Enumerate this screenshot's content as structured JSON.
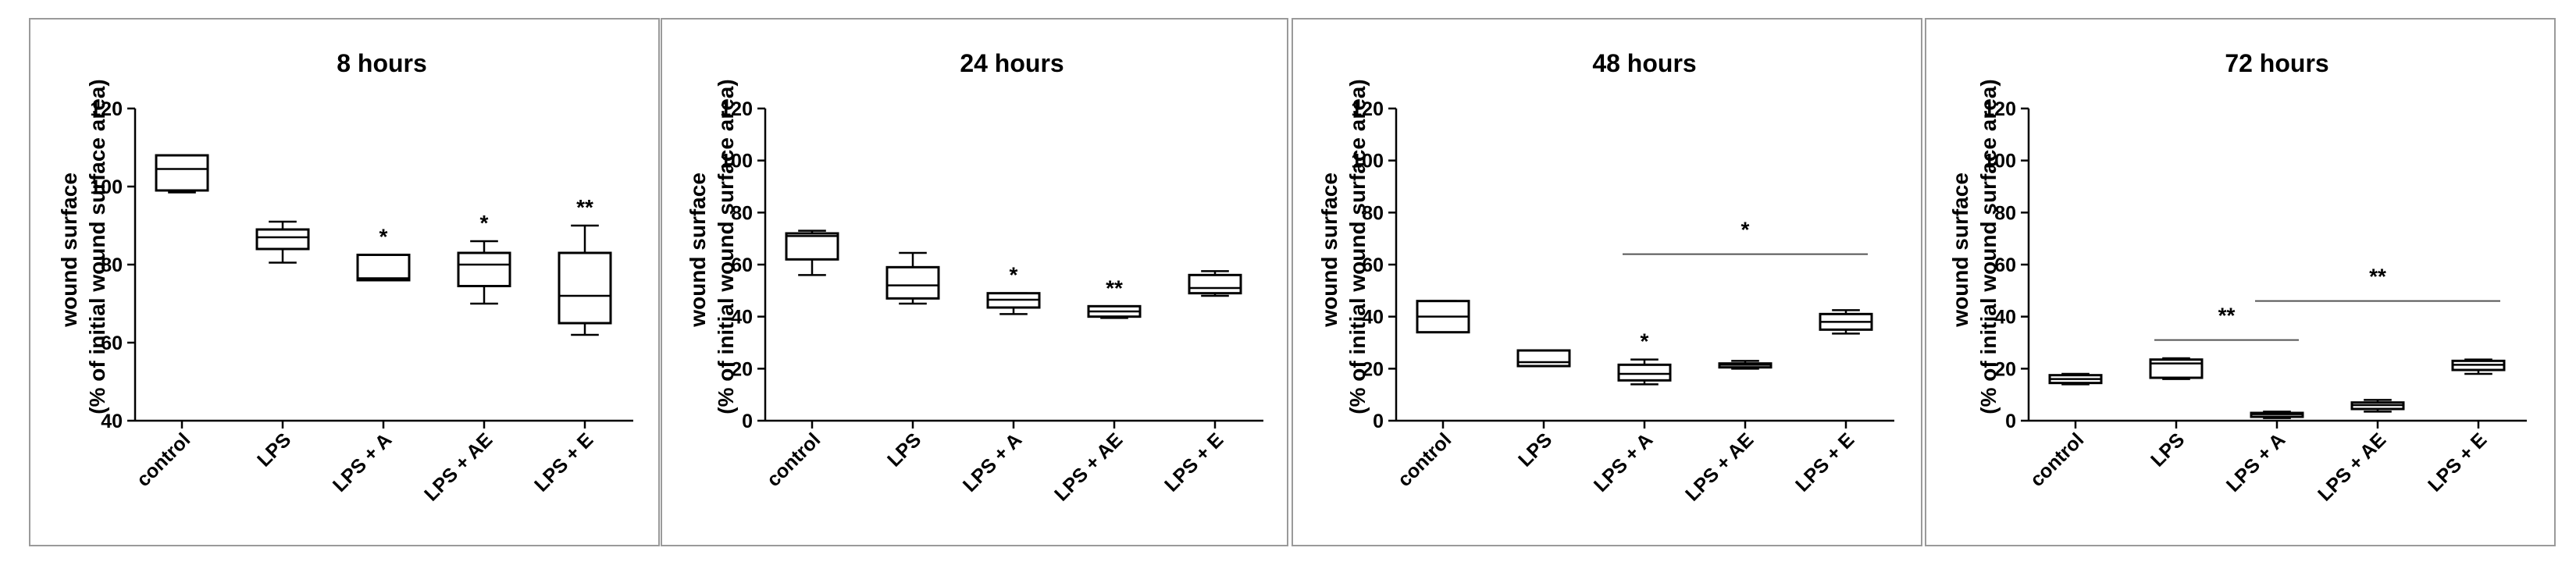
{
  "panels": [
    {
      "title": "8 hours",
      "ylabel_line1": "wound surface",
      "ylabel_line2": "(% of initial wound surface area)",
      "chart_data": {
        "type": "boxplot",
        "title": "8 hours",
        "ylabel": "wound surface (% of initial wound surface area)",
        "ylim": [
          40,
          120
        ],
        "yticks": [
          40,
          60,
          80,
          100,
          120
        ],
        "categories": [
          "control",
          "LPS",
          "LPS + A",
          "LPS + AE",
          "LPS + E"
        ],
        "boxes": [
          {
            "min": 98.5,
            "q1": 99,
            "median": 104.5,
            "q3": 108,
            "max": 108
          },
          {
            "min": 80.5,
            "q1": 84,
            "median": 87,
            "q3": 89,
            "max": 91
          },
          {
            "min": 76,
            "q1": 76,
            "median": 76.5,
            "q3": 82.5,
            "max": 82.5
          },
          {
            "min": 70,
            "q1": 74.5,
            "median": 80,
            "q3": 83,
            "max": 86
          },
          {
            "min": 62,
            "q1": 65,
            "median": 72,
            "q3": 83,
            "max": 90
          }
        ],
        "annotations": [
          {
            "category": "LPS + A",
            "text": "*"
          },
          {
            "category": "LPS + AE",
            "text": "*"
          },
          {
            "category": "LPS + E",
            "text": "**"
          }
        ],
        "brackets": []
      }
    },
    {
      "title": "24 hours",
      "ylabel_line1": "wound surface",
      "ylabel_line2": "(% of initial wound surface area)",
      "chart_data": {
        "type": "boxplot",
        "title": "24 hours",
        "ylabel": "wound surface (% of initial wound surface area)",
        "ylim": [
          0,
          120
        ],
        "yticks": [
          0,
          20,
          40,
          60,
          80,
          100,
          120
        ],
        "categories": [
          "control",
          "LPS",
          "LPS + A",
          "LPS + AE",
          "LPS + E"
        ],
        "boxes": [
          {
            "min": 56,
            "q1": 62,
            "median": 71,
            "q3": 72,
            "max": 73
          },
          {
            "min": 45,
            "q1": 47,
            "median": 52,
            "q3": 59,
            "max": 64.5
          },
          {
            "min": 41,
            "q1": 43.5,
            "median": 46.5,
            "q3": 49,
            "max": 49
          },
          {
            "min": 39.5,
            "q1": 40,
            "median": 42,
            "q3": 44,
            "max": 44
          },
          {
            "min": 48,
            "q1": 49,
            "median": 51,
            "q3": 56,
            "max": 57.5
          }
        ],
        "annotations": [
          {
            "category": "LPS + A",
            "text": "*"
          },
          {
            "category": "LPS + AE",
            "text": "**"
          }
        ],
        "brackets": []
      }
    },
    {
      "title": "48 hours",
      "ylabel_line1": "wound surface",
      "ylabel_line2": "(% of initial wound surface area)",
      "chart_data": {
        "type": "boxplot",
        "title": "48 hours",
        "ylabel": "wound surface (% of initial wound surface area)",
        "ylim": [
          0,
          120
        ],
        "yticks": [
          0,
          20,
          40,
          60,
          80,
          100,
          120
        ],
        "categories": [
          "control",
          "LPS",
          "LPS + A",
          "LPS + AE",
          "LPS + E"
        ],
        "boxes": [
          {
            "min": 34,
            "q1": 34,
            "median": 40,
            "q3": 46,
            "max": 46
          },
          {
            "min": 21,
            "q1": 21,
            "median": 22.5,
            "q3": 27,
            "max": 27
          },
          {
            "min": 14,
            "q1": 15.5,
            "median": 18,
            "q3": 21.5,
            "max": 23.5
          },
          {
            "min": 20,
            "q1": 20.5,
            "median": 21.5,
            "q3": 22,
            "max": 23
          },
          {
            "min": 33.5,
            "q1": 35,
            "median": 38,
            "q3": 41,
            "max": 42.5
          }
        ],
        "annotations": [
          {
            "category": "LPS + A",
            "text": "*"
          }
        ],
        "brackets": [
          {
            "from": "LPS + A",
            "to": "LPS + E",
            "y": 64,
            "text": "*"
          }
        ]
      }
    },
    {
      "title": "72 hours",
      "ylabel_line1": "wound surface",
      "ylabel_line2": "(% of initial wound surface area)",
      "chart_data": {
        "type": "boxplot",
        "title": "72 hours",
        "ylabel": "wound surface (% of initial wound surface area)",
        "ylim": [
          0,
          120
        ],
        "yticks": [
          0,
          20,
          40,
          60,
          80,
          100,
          120
        ],
        "categories": [
          "control",
          "LPS",
          "LPS + A",
          "LPS + AE",
          "LPS + E"
        ],
        "boxes": [
          {
            "min": 14,
            "q1": 14.5,
            "median": 16,
            "q3": 17.5,
            "max": 18
          },
          {
            "min": 16,
            "q1": 16.5,
            "median": 22,
            "q3": 23.5,
            "max": 24
          },
          {
            "min": 1,
            "q1": 1.5,
            "median": 2.5,
            "q3": 3,
            "max": 3.5
          },
          {
            "min": 3.5,
            "q1": 4.5,
            "median": 6,
            "q3": 7,
            "max": 8
          },
          {
            "min": 18,
            "q1": 19.5,
            "median": 21.5,
            "q3": 23,
            "max": 23.5
          }
        ],
        "annotations": [],
        "brackets": [
          {
            "from": "LPS",
            "to": "LPS + A",
            "y": 31,
            "text": "**"
          },
          {
            "from": "LPS + A",
            "to": "LPS + E",
            "y": 46,
            "text": "**"
          }
        ]
      }
    }
  ]
}
